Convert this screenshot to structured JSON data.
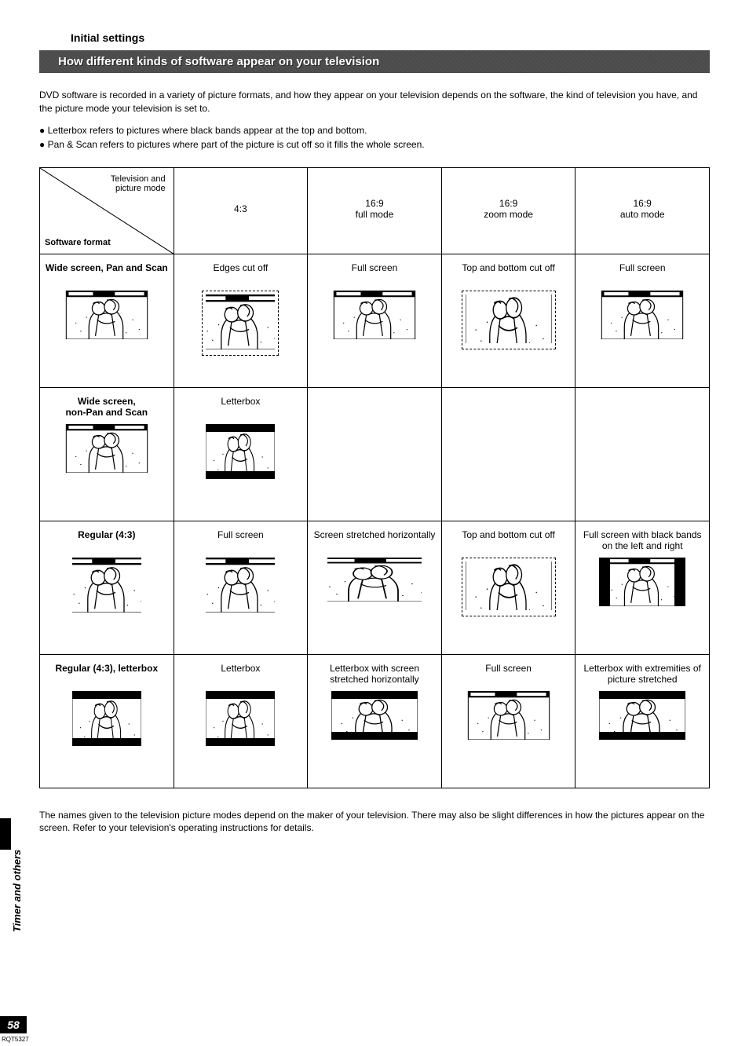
{
  "section_title": "Initial settings",
  "banner": "How different kinds of software appear on your television",
  "intro": "DVD software is recorded in a variety of picture formats, and how they appear on your television depends on the software, the kind of television you have, and the picture mode your television is set to.",
  "bullets": [
    "Letterbox refers to pictures where black bands appear at the top and bottom.",
    "Pan & Scan refers to pictures where part of the picture is cut off so it fills the whole screen."
  ],
  "header": {
    "diag_top": "Television and\npicture mode",
    "diag_bottom": "Software format",
    "cols": [
      "4:3",
      "16:9\nfull mode",
      "16:9\nzoom mode",
      "16:9\nauto mode"
    ]
  },
  "rows": [
    {
      "label": "Wide screen, Pan and Scan",
      "cells": [
        "Edges cut off",
        "Full screen",
        "Top and bottom cut off",
        "Full screen"
      ],
      "imgs": [
        "narrow-dashed",
        "wide",
        "wide-crop-dashed",
        "wide"
      ]
    },
    {
      "label": "Wide screen,\nnon-Pan and Scan",
      "cells": [
        "Letterbox",
        "",
        "",
        ""
      ],
      "imgs": [
        "letterbox-narrow",
        "",
        "",
        ""
      ]
    },
    {
      "label": "Regular (4:3)",
      "cells": [
        "Full screen",
        "Screen stretched horizontally",
        "Top and bottom cut off",
        "Full screen with black bands on the left and right"
      ],
      "imgs": [
        "narrow",
        "stretch",
        "wide-crop-dashed",
        "pillar"
      ]
    },
    {
      "label": "Regular (4:3), letterbox",
      "cells": [
        "Letterbox",
        "Letterbox with screen stretched horizontally",
        "Full screen",
        "Letterbox with extremities of picture stretched"
      ],
      "imgs": [
        "letterbox-narrow",
        "letterbox-wide",
        "wide",
        "letterbox-wide"
      ]
    }
  ],
  "row_source_imgs": [
    "wide",
    "wide",
    "narrow",
    "letterbox-narrow"
  ],
  "footnote": "The names given to the television picture modes depend on the maker of your television. There may also be slight differences in how the pictures appear on the screen. Refer to your television's operating instructions for details.",
  "side_label": "Timer and others",
  "page_num": "58",
  "doc_ref": "RQT5327",
  "colors": {
    "banner_bg": "#4a4a4a",
    "banner_fg": "#ffffff",
    "border": "#000000",
    "page_bg": "#ffffff",
    "text": "#000000"
  }
}
